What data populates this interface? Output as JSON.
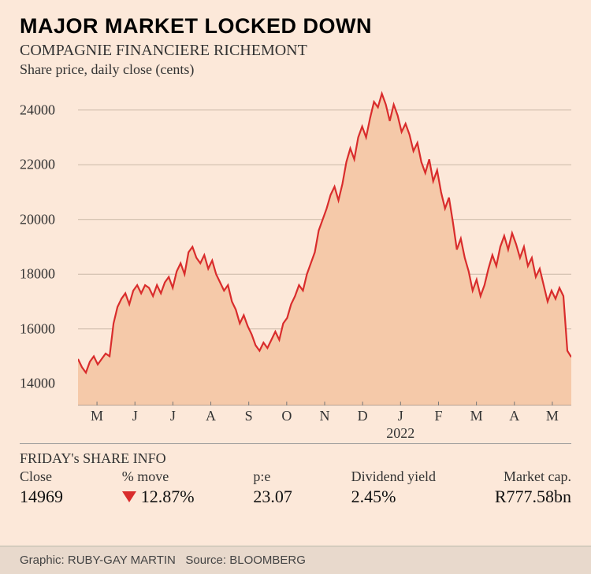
{
  "title": "MAJOR MARKET LOCKED DOWN",
  "subtitle": "COMPAGNIE FINANCIERE RICHEMONT",
  "ylabel": "Share price, daily close (cents)",
  "chart": {
    "type": "area",
    "line_color": "#d92c2c",
    "line_width": 2.2,
    "fill_color": "#f5c9a9",
    "background_color": "#fce8d9",
    "grid_color": "#c9b8a8",
    "ylim_min": 13200,
    "ylim_max": 25000,
    "yticks": [
      14000,
      16000,
      18000,
      20000,
      22000,
      24000
    ],
    "xticks": [
      "M",
      "J",
      "J",
      "A",
      "S",
      "O",
      "N",
      "D",
      "J",
      "F",
      "M",
      "A",
      "M"
    ],
    "year_label": "2022",
    "year_label_index": 8,
    "data": [
      14900,
      14600,
      14400,
      14800,
      15000,
      14700,
      14900,
      15100,
      15000,
      16200,
      16800,
      17100,
      17300,
      16900,
      17400,
      17600,
      17300,
      17600,
      17500,
      17200,
      17600,
      17300,
      17700,
      17900,
      17500,
      18100,
      18400,
      18000,
      18800,
      19000,
      18600,
      18400,
      18700,
      18200,
      18500,
      18000,
      17700,
      17400,
      17600,
      17000,
      16700,
      16200,
      16500,
      16100,
      15800,
      15400,
      15200,
      15500,
      15300,
      15600,
      15900,
      15600,
      16200,
      16400,
      16900,
      17200,
      17600,
      17400,
      18000,
      18400,
      18800,
      19600,
      20000,
      20400,
      20900,
      21200,
      20700,
      21300,
      22100,
      22600,
      22200,
      23000,
      23400,
      23000,
      23700,
      24300,
      24100,
      24600,
      24200,
      23600,
      24200,
      23800,
      23200,
      23500,
      23100,
      22500,
      22800,
      22100,
      21700,
      22200,
      21400,
      21800,
      21000,
      20400,
      20800,
      19900,
      18900,
      19300,
      18600,
      18100,
      17400,
      17800,
      17200,
      17600,
      18200,
      18700,
      18300,
      19000,
      19400,
      18900,
      19500,
      19100,
      18600,
      19000,
      18300,
      18600,
      17900,
      18200,
      17600,
      17000,
      17400,
      17100,
      17500,
      17200,
      15200,
      14969
    ]
  },
  "info": {
    "header": "FRIDAY's SHARE INFO",
    "close_label": "Close",
    "close_value": "14969",
    "move_label": "% move",
    "move_value": "12.87%",
    "move_direction": "down",
    "pe_label": "p:e",
    "pe_value": "23.07",
    "div_label": "Dividend yield",
    "div_value": "2.45%",
    "mcap_label": "Market cap.",
    "mcap_value": "R777.58bn"
  },
  "footer": {
    "graphic_label": "Graphic:",
    "graphic_value": "RUBY-GAY MARTIN",
    "source_label": "Source:",
    "source_value": "BLOOMBERG"
  }
}
